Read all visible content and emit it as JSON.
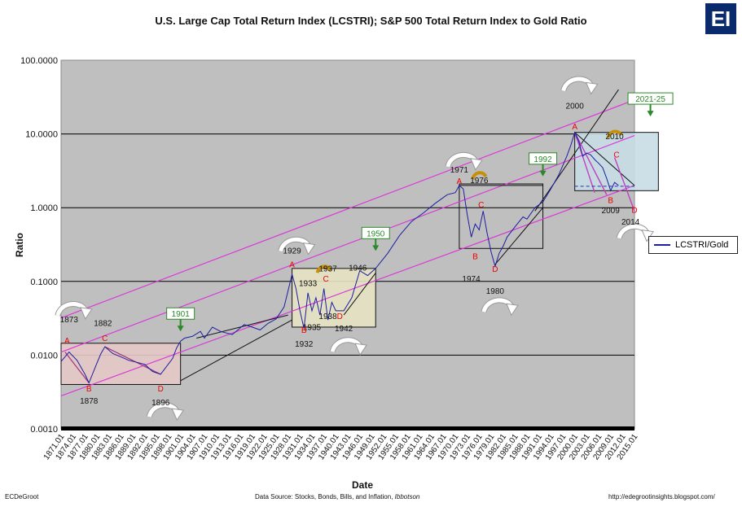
{
  "chart_data": {
    "type": "line",
    "title": "U.S. Large Cap Total Return Index (LCSTRI); S&P 500 Total Return Index to Gold Ratio",
    "xlabel": "Date",
    "ylabel": "Ratio",
    "yscale": "log",
    "ylim": [
      0.001,
      100
    ],
    "y_ticks": [
      "0.0010",
      "0.0100",
      "0.1000",
      "1.0000",
      "10.0000",
      "100.0000"
    ],
    "x_range": [
      1871,
      2015
    ],
    "x_ticks": [
      "1871.01",
      "1874.01",
      "1877.01",
      "1880.01",
      "1883.01",
      "1886.01",
      "1889.01",
      "1892.01",
      "1895.01",
      "1898.01",
      "1901.01",
      "1904.01",
      "1907.01",
      "1910.01",
      "1913.01",
      "1916.01",
      "1919.01",
      "1922.01",
      "1925.01",
      "1928.01",
      "1931.01",
      "1934.01",
      "1937.01",
      "1940.01",
      "1943.01",
      "1946.01",
      "1949.01",
      "1952.01",
      "1955.01",
      "1958.01",
      "1961.01",
      "1964.01",
      "1967.01",
      "1970.01",
      "1973.01",
      "1976.01",
      "1979.01",
      "1982.01",
      "1985.01",
      "1988.01",
      "1991.01",
      "1994.01",
      "1997.01",
      "2000.01",
      "2003.01",
      "2006.01",
      "2009.01",
      "2012.01",
      "2015.01"
    ],
    "legend": "right",
    "series": [
      {
        "name": "LCSTRI/Gold",
        "color": "#1b1fa0",
        "x": [
          1871,
          1873,
          1875,
          1877,
          1878,
          1880,
          1881,
          1882,
          1884,
          1886,
          1888,
          1890,
          1892,
          1894,
          1896,
          1897,
          1899,
          1900,
          1901,
          1902,
          1904,
          1906,
          1907,
          1909,
          1911,
          1914,
          1917,
          1919,
          1921,
          1923,
          1925,
          1927,
          1929,
          1930,
          1931,
          1932,
          1933,
          1934,
          1935,
          1936,
          1937,
          1938,
          1939,
          1940,
          1942,
          1944,
          1946,
          1948,
          1950,
          1953,
          1956,
          1959,
          1962,
          1965,
          1968,
          1970,
          1971,
          1972,
          1973,
          1974,
          1975,
          1976,
          1977,
          1978,
          1979,
          1980,
          1981,
          1982,
          1983,
          1985,
          1987,
          1988,
          1990,
          1992,
          1994,
          1996,
          1998,
          1999,
          2000,
          2001,
          2002,
          2003,
          2004,
          2005,
          2006,
          2007,
          2008,
          2009,
          2010,
          2011
        ],
        "values": [
          0.0082,
          0.011,
          0.0085,
          0.0055,
          0.0042,
          0.0078,
          0.0105,
          0.013,
          0.0105,
          0.0095,
          0.0085,
          0.008,
          0.0075,
          0.006,
          0.0055,
          0.0065,
          0.009,
          0.0125,
          0.0155,
          0.017,
          0.018,
          0.021,
          0.017,
          0.024,
          0.021,
          0.019,
          0.026,
          0.024,
          0.022,
          0.027,
          0.031,
          0.045,
          0.125,
          0.08,
          0.04,
          0.023,
          0.07,
          0.04,
          0.06,
          0.035,
          0.08,
          0.03,
          0.052,
          0.04,
          0.04,
          0.06,
          0.14,
          0.12,
          0.15,
          0.24,
          0.42,
          0.65,
          0.85,
          1.15,
          1.5,
          1.6,
          2.0,
          1.8,
          0.8,
          0.4,
          0.6,
          0.5,
          0.9,
          0.45,
          0.25,
          0.16,
          0.24,
          0.3,
          0.4,
          0.55,
          0.75,
          0.7,
          1.0,
          1.2,
          1.8,
          2.8,
          5.0,
          7.0,
          10.5,
          8.0,
          5.0,
          5.5,
          5.2,
          4.5,
          4.0,
          3.5,
          2.5,
          1.7,
          2.2,
          2.0
        ]
      }
    ],
    "annotations": [
      {
        "text": "1873",
        "x": 1873,
        "y": 0.028,
        "color": "#111"
      },
      {
        "text": "A",
        "x": 1872.5,
        "y": 0.0145,
        "color": "#e00"
      },
      {
        "text": "1882",
        "x": 1881.5,
        "y": 0.025,
        "color": "#111"
      },
      {
        "text": "C",
        "x": 1882,
        "y": 0.0155,
        "color": "#e00"
      },
      {
        "text": "B",
        "x": 1878,
        "y": 0.0032,
        "color": "#e00"
      },
      {
        "text": "1878",
        "x": 1878,
        "y": 0.0022,
        "color": "#111"
      },
      {
        "text": "D",
        "x": 1896,
        "y": 0.0032,
        "color": "#e00"
      },
      {
        "text": "1896",
        "x": 1896,
        "y": 0.0021,
        "color": "#111"
      },
      {
        "text": "1929",
        "x": 1929,
        "y": 0.24,
        "color": "#111"
      },
      {
        "text": "A",
        "x": 1929,
        "y": 0.155,
        "color": "#e00"
      },
      {
        "text": "1933",
        "x": 1933,
        "y": 0.086,
        "color": "#111"
      },
      {
        "text": "C",
        "x": 1937.5,
        "y": 0.1,
        "color": "#e00"
      },
      {
        "text": "1937",
        "x": 1938,
        "y": 0.137,
        "color": "#111"
      },
      {
        "text": "1946",
        "x": 1945.5,
        "y": 0.14,
        "color": "#111"
      },
      {
        "text": "1938",
        "x": 1938,
        "y": 0.031,
        "color": "#111"
      },
      {
        "text": "D",
        "x": 1941,
        "y": 0.031,
        "color": "#e00"
      },
      {
        "text": "1935",
        "x": 1934,
        "y": 0.022,
        "color": "#111"
      },
      {
        "text": "1942",
        "x": 1942,
        "y": 0.021,
        "color": "#111"
      },
      {
        "text": "B",
        "x": 1932,
        "y": 0.02,
        "color": "#e00"
      },
      {
        "text": "1932",
        "x": 1932,
        "y": 0.013,
        "color": "#111"
      },
      {
        "text": "1971",
        "x": 1971,
        "y": 3.0,
        "color": "#111"
      },
      {
        "text": "A",
        "x": 1971,
        "y": 2.1,
        "color": "#e00"
      },
      {
        "text": "1976",
        "x": 1976,
        "y": 2.15,
        "color": "#111"
      },
      {
        "text": "C",
        "x": 1976.5,
        "y": 1.0,
        "color": "#e00"
      },
      {
        "text": "B",
        "x": 1975,
        "y": 0.2,
        "color": "#e00"
      },
      {
        "text": "D",
        "x": 1980,
        "y": 0.135,
        "color": "#e00"
      },
      {
        "text": "1974",
        "x": 1974,
        "y": 0.1,
        "color": "#111"
      },
      {
        "text": "1980",
        "x": 1980,
        "y": 0.068,
        "color": "#111"
      },
      {
        "text": "2000",
        "x": 2000,
        "y": 22,
        "color": "#111"
      },
      {
        "text": "A",
        "x": 2000,
        "y": 11.5,
        "color": "#e00"
      },
      {
        "text": "2010",
        "x": 2010,
        "y": 8.5,
        "color": "#111"
      },
      {
        "text": "C",
        "x": 2010.5,
        "y": 4.8,
        "color": "#e00"
      },
      {
        "text": "B",
        "x": 2009,
        "y": 1.15,
        "color": "#e00"
      },
      {
        "text": "D",
        "x": 2015,
        "y": 0.85,
        "color": "#e00"
      },
      {
        "text": "2009",
        "x": 2009,
        "y": 0.84,
        "color": "#111"
      },
      {
        "text": "2014",
        "x": 2014,
        "y": 0.59,
        "color": "#111"
      }
    ],
    "callouts": [
      {
        "text": "1901",
        "x": 1901,
        "y": 0.034,
        "color": "#2a8a2a"
      },
      {
        "text": "1950",
        "x": 1950,
        "y": 0.42,
        "color": "#2a8a2a"
      },
      {
        "text": "1992",
        "x": 1992,
        "y": 4.3,
        "color": "#2a8a2a"
      },
      {
        "text": "2021-25",
        "x": 2019,
        "y": 28,
        "color": "#2a8a2a"
      }
    ],
    "boxes": [
      {
        "x1": 1871,
        "x2": 1901,
        "y1": 0.004,
        "y2": 0.0145,
        "fill": "#e6c8c8"
      },
      {
        "x1": 1929,
        "x2": 1950,
        "y1": 0.024,
        "y2": 0.15,
        "fill": "#e5e2c2"
      },
      {
        "x1": 1971,
        "x2": 1992,
        "y1": 0.28,
        "y2": 2.1,
        "fill": "none"
      },
      {
        "x1": 2000,
        "x2": 2021,
        "y1": 1.7,
        "y2": 10.5,
        "fill": "#c8dde4"
      }
    ]
  },
  "footer": {
    "left": "ECDeGroot",
    "center_prefix": "Data Source:  Stocks, Bonds, Bills, and Inflation, ",
    "center_italic": "Ibbotson",
    "right": "http://edegrootinsights.blogspot.com/"
  },
  "logo": "EI"
}
